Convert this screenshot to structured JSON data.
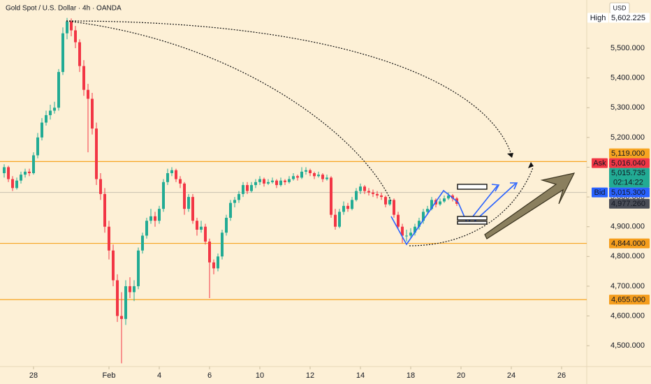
{
  "title": "Gold Spot / U.S. Dollar · 4h · OANDA",
  "currency": "USD",
  "chart_data": {
    "type": "candlestick",
    "up_color": "#22ab94",
    "down_color": "#f23645",
    "ylim": [
      4430,
      5662
    ],
    "xlim": [
      -1,
      139
    ],
    "yticks": [
      {
        "value": 5500,
        "label": "5,500.000"
      },
      {
        "value": 5400,
        "label": "5,400.000"
      },
      {
        "value": 5300,
        "label": "5,300.000"
      },
      {
        "value": 5200,
        "label": "5,200.000"
      },
      {
        "value": 5100,
        "label": "5,100.000"
      },
      {
        "value": 5000,
        "label": "5,000.000"
      },
      {
        "value": 4900,
        "label": "4,900.000"
      },
      {
        "value": 4800,
        "label": "4,800.000"
      },
      {
        "value": 4700,
        "label": "4,700.000"
      },
      {
        "value": 4600,
        "label": "4,600.000"
      },
      {
        "value": 4500,
        "label": "4,500.000"
      }
    ],
    "xticks": [
      {
        "value": 7,
        "label": "28"
      },
      {
        "value": 25,
        "label": "Feb"
      },
      {
        "value": 37,
        "label": "4"
      },
      {
        "value": 49,
        "label": "6"
      },
      {
        "value": 61,
        "label": "10"
      },
      {
        "value": 73,
        "label": "12"
      },
      {
        "value": 85,
        "label": "14"
      },
      {
        "value": 97,
        "label": "18"
      },
      {
        "value": 109,
        "label": "20"
      },
      {
        "value": 121,
        "label": "24"
      },
      {
        "value": 133,
        "label": "26"
      }
    ],
    "levels": [
      {
        "value": 5119,
        "label": "5,119.000",
        "color": "#f7a521"
      },
      {
        "value": 4844,
        "label": "4,844.000",
        "color": "#f7a521"
      },
      {
        "value": 4655,
        "label": "4,655.000",
        "color": "#f7a521"
      }
    ],
    "high": {
      "name": "High",
      "value": 5602.225,
      "label": "5,602.225"
    },
    "price_tags": [
      {
        "name": "Ask",
        "value": 5016.04,
        "label": "5,016.040",
        "color": "#f23645"
      },
      {
        "value": 5015.735,
        "label": "5,015.735",
        "countdown": "02:14:22",
        "color": "#22ab94"
      },
      {
        "name": "Bid",
        "value": 5015.3,
        "label": "5,015.300",
        "color": "#2962ff"
      },
      {
        "value": 4977.26,
        "label": "4,977.260",
        "color": "#4a4d57"
      }
    ],
    "candles": [
      [
        5080,
        5110,
        5065,
        5100
      ],
      [
        5100,
        5105,
        5050,
        5060
      ],
      [
        5060,
        5070,
        5020,
        5030
      ],
      [
        5030,
        5065,
        5025,
        5055
      ],
      [
        5055,
        5085,
        5045,
        5075
      ],
      [
        5075,
        5095,
        5065,
        5085
      ],
      [
        5085,
        5095,
        5070,
        5080
      ],
      [
        5080,
        5150,
        5075,
        5140
      ],
      [
        5140,
        5215,
        5130,
        5200
      ],
      [
        5200,
        5265,
        5190,
        5250
      ],
      [
        5250,
        5290,
        5240,
        5275
      ],
      [
        5275,
        5310,
        5260,
        5290
      ],
      [
        5290,
        5320,
        5280,
        5300
      ],
      [
        5300,
        5430,
        5290,
        5420
      ],
      [
        5420,
        5570,
        5410,
        5550
      ],
      [
        5550,
        5602,
        5530,
        5590
      ],
      [
        5590,
        5600,
        5540,
        5560
      ],
      [
        5560,
        5575,
        5500,
        5520
      ],
      [
        5520,
        5530,
        5420,
        5440
      ],
      [
        5440,
        5460,
        5340,
        5360
      ],
      [
        5360,
        5380,
        5150,
        5330
      ],
      [
        5330,
        5350,
        5210,
        5230
      ],
      [
        5230,
        5250,
        5040,
        5060
      ],
      [
        5060,
        5080,
        4990,
        5010
      ],
      [
        5010,
        5030,
        4880,
        4900
      ],
      [
        4900,
        4920,
        4790,
        4820
      ],
      [
        4820,
        4840,
        4700,
        4720
      ],
      [
        4720,
        4740,
        4580,
        4600
      ],
      [
        4600,
        4680,
        4441,
        4590
      ],
      [
        4590,
        4720,
        4570,
        4700
      ],
      [
        4700,
        4730,
        4660,
        4680
      ],
      [
        4680,
        4720,
        4650,
        4700
      ],
      [
        4700,
        4830,
        4690,
        4820
      ],
      [
        4820,
        4880,
        4810,
        4870
      ],
      [
        4870,
        4930,
        4860,
        4920
      ],
      [
        4920,
        4960,
        4910,
        4935
      ],
      [
        4935,
        4950,
        4900,
        4920
      ],
      [
        4920,
        4970,
        4910,
        4960
      ],
      [
        4960,
        5060,
        4950,
        5050
      ],
      [
        5050,
        5095,
        5040,
        5080
      ],
      [
        5080,
        5100,
        5070,
        5090
      ],
      [
        5090,
        5095,
        5050,
        5060
      ],
      [
        5060,
        5070,
        5030,
        5045
      ],
      [
        5045,
        5050,
        4940,
        4960
      ],
      [
        4960,
        5010,
        4950,
        5000
      ],
      [
        5000,
        5010,
        4910,
        4920
      ],
      [
        4920,
        4930,
        4870,
        4890
      ],
      [
        4890,
        4920,
        4880,
        4900
      ],
      [
        4900,
        4910,
        4840,
        4850
      ],
      [
        4850,
        4860,
        4660,
        4780
      ],
      [
        4780,
        4790,
        4740,
        4760
      ],
      [
        4760,
        4810,
        4750,
        4800
      ],
      [
        4800,
        4890,
        4790,
        4880
      ],
      [
        4880,
        4940,
        4870,
        4930
      ],
      [
        4930,
        4990,
        4920,
        4980
      ],
      [
        4980,
        5000,
        4965,
        4990
      ],
      [
        4990,
        5020,
        4980,
        5010
      ],
      [
        5010,
        5050,
        5000,
        5040
      ],
      [
        5040,
        5050,
        5010,
        5020
      ],
      [
        5020,
        5050,
        5015,
        5040
      ],
      [
        5040,
        5060,
        5030,
        5050
      ],
      [
        5050,
        5070,
        5040,
        5060
      ],
      [
        5060,
        5065,
        5035,
        5045
      ],
      [
        5045,
        5060,
        5040,
        5050
      ],
      [
        5050,
        5065,
        5045,
        5055
      ],
      [
        5055,
        5060,
        5030,
        5040
      ],
      [
        5040,
        5065,
        5035,
        5055
      ],
      [
        5055,
        5060,
        5040,
        5050
      ],
      [
        5050,
        5070,
        5045,
        5060
      ],
      [
        5060,
        5080,
        5055,
        5070
      ],
      [
        5070,
        5075,
        5055,
        5065
      ],
      [
        5065,
        5100,
        5060,
        5085
      ],
      [
        5085,
        5100,
        5075,
        5090
      ],
      [
        5090,
        5095,
        5070,
        5080
      ],
      [
        5080,
        5085,
        5060,
        5070
      ],
      [
        5070,
        5085,
        5065,
        5075
      ],
      [
        5075,
        5080,
        5050,
        5060
      ],
      [
        5060,
        5075,
        5055,
        5065
      ],
      [
        5065,
        5070,
        4930,
        4940
      ],
      [
        4940,
        4960,
        4890,
        4900
      ],
      [
        4900,
        4960,
        4895,
        4950
      ],
      [
        4950,
        4985,
        4940,
        4970
      ],
      [
        4970,
        4980,
        4950,
        4960
      ],
      [
        4960,
        5000,
        4955,
        4990
      ],
      [
        4990,
        5030,
        4985,
        5020
      ],
      [
        5020,
        5045,
        5010,
        5035
      ],
      [
        5035,
        5040,
        5010,
        5020
      ],
      [
        5020,
        5030,
        5005,
        5015
      ],
      [
        5015,
        5025,
        5000,
        5010
      ],
      [
        5010,
        5020,
        4995,
        5005
      ],
      [
        5005,
        5015,
        4990,
        5000
      ],
      [
        5000,
        5005,
        4965,
        4975
      ],
      [
        4975,
        5000,
        4970,
        4990
      ],
      [
        4990,
        4995,
        4930,
        4940
      ],
      [
        4940,
        4950,
        4890,
        4900
      ],
      [
        4900,
        4910,
        4845,
        4870
      ],
      [
        4870,
        4890,
        4850,
        4870
      ],
      [
        4870,
        4895,
        4860,
        4880
      ],
      [
        4880,
        4910,
        4870,
        4900
      ],
      [
        4900,
        4930,
        4890,
        4920
      ],
      [
        4920,
        4960,
        4910,
        4950
      ],
      [
        4950,
        4970,
        4940,
        4960
      ],
      [
        4960,
        5000,
        4955,
        4990
      ],
      [
        4990,
        4995,
        4965,
        4975
      ],
      [
        4975,
        4995,
        4970,
        4985
      ],
      [
        4985,
        5005,
        4980,
        4995
      ],
      [
        4995,
        5015,
        4990,
        5005
      ],
      [
        5005,
        5010,
        4985,
        4995
      ],
      [
        4995,
        5000,
        4970,
        4977
      ]
    ]
  }
}
